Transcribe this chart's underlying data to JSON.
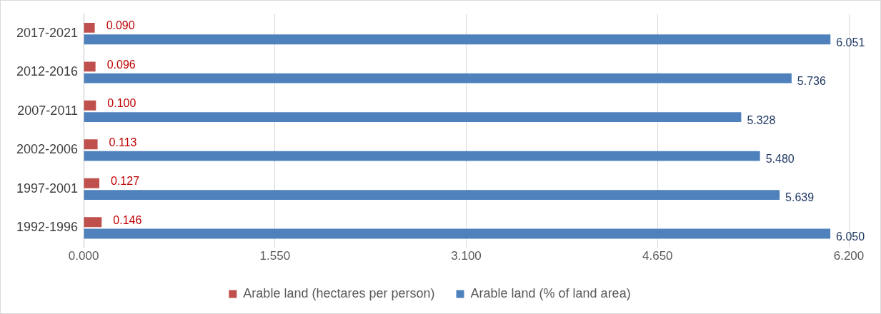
{
  "chart_data": {
    "type": "bar",
    "orientation": "horizontal",
    "categories": [
      "2017-2021",
      "2012-2016",
      "2007-2011",
      "2002-2006",
      "1997-2001",
      "1992-1996"
    ],
    "series": [
      {
        "name": "Arable land (hectares per person)",
        "color": "#c0504d",
        "values": [
          0.09,
          0.096,
          0.1,
          0.113,
          0.127,
          0.146
        ],
        "value_labels": [
          "0.090",
          "0.096",
          "0.100",
          "0.113",
          "0.127",
          "0.146"
        ]
      },
      {
        "name": "Arable land (% of land area)",
        "color": "#4f81bd",
        "values": [
          6.051,
          5.736,
          5.328,
          5.48,
          5.639,
          6.05
        ],
        "value_labels": [
          "6.051",
          "5.736",
          "5.328",
          "5.480",
          "5.639",
          "6.050"
        ]
      }
    ],
    "xlim": [
      0,
      6.2
    ],
    "xticks": [
      {
        "value": 0,
        "label": "0.000"
      },
      {
        "value": 1.55,
        "label": "1.550"
      },
      {
        "value": 3.1,
        "label": "3.100"
      },
      {
        "value": 4.65,
        "label": "4.650"
      },
      {
        "value": 6.2,
        "label": "6.200"
      }
    ],
    "grid": "x",
    "legend": "bottom"
  }
}
